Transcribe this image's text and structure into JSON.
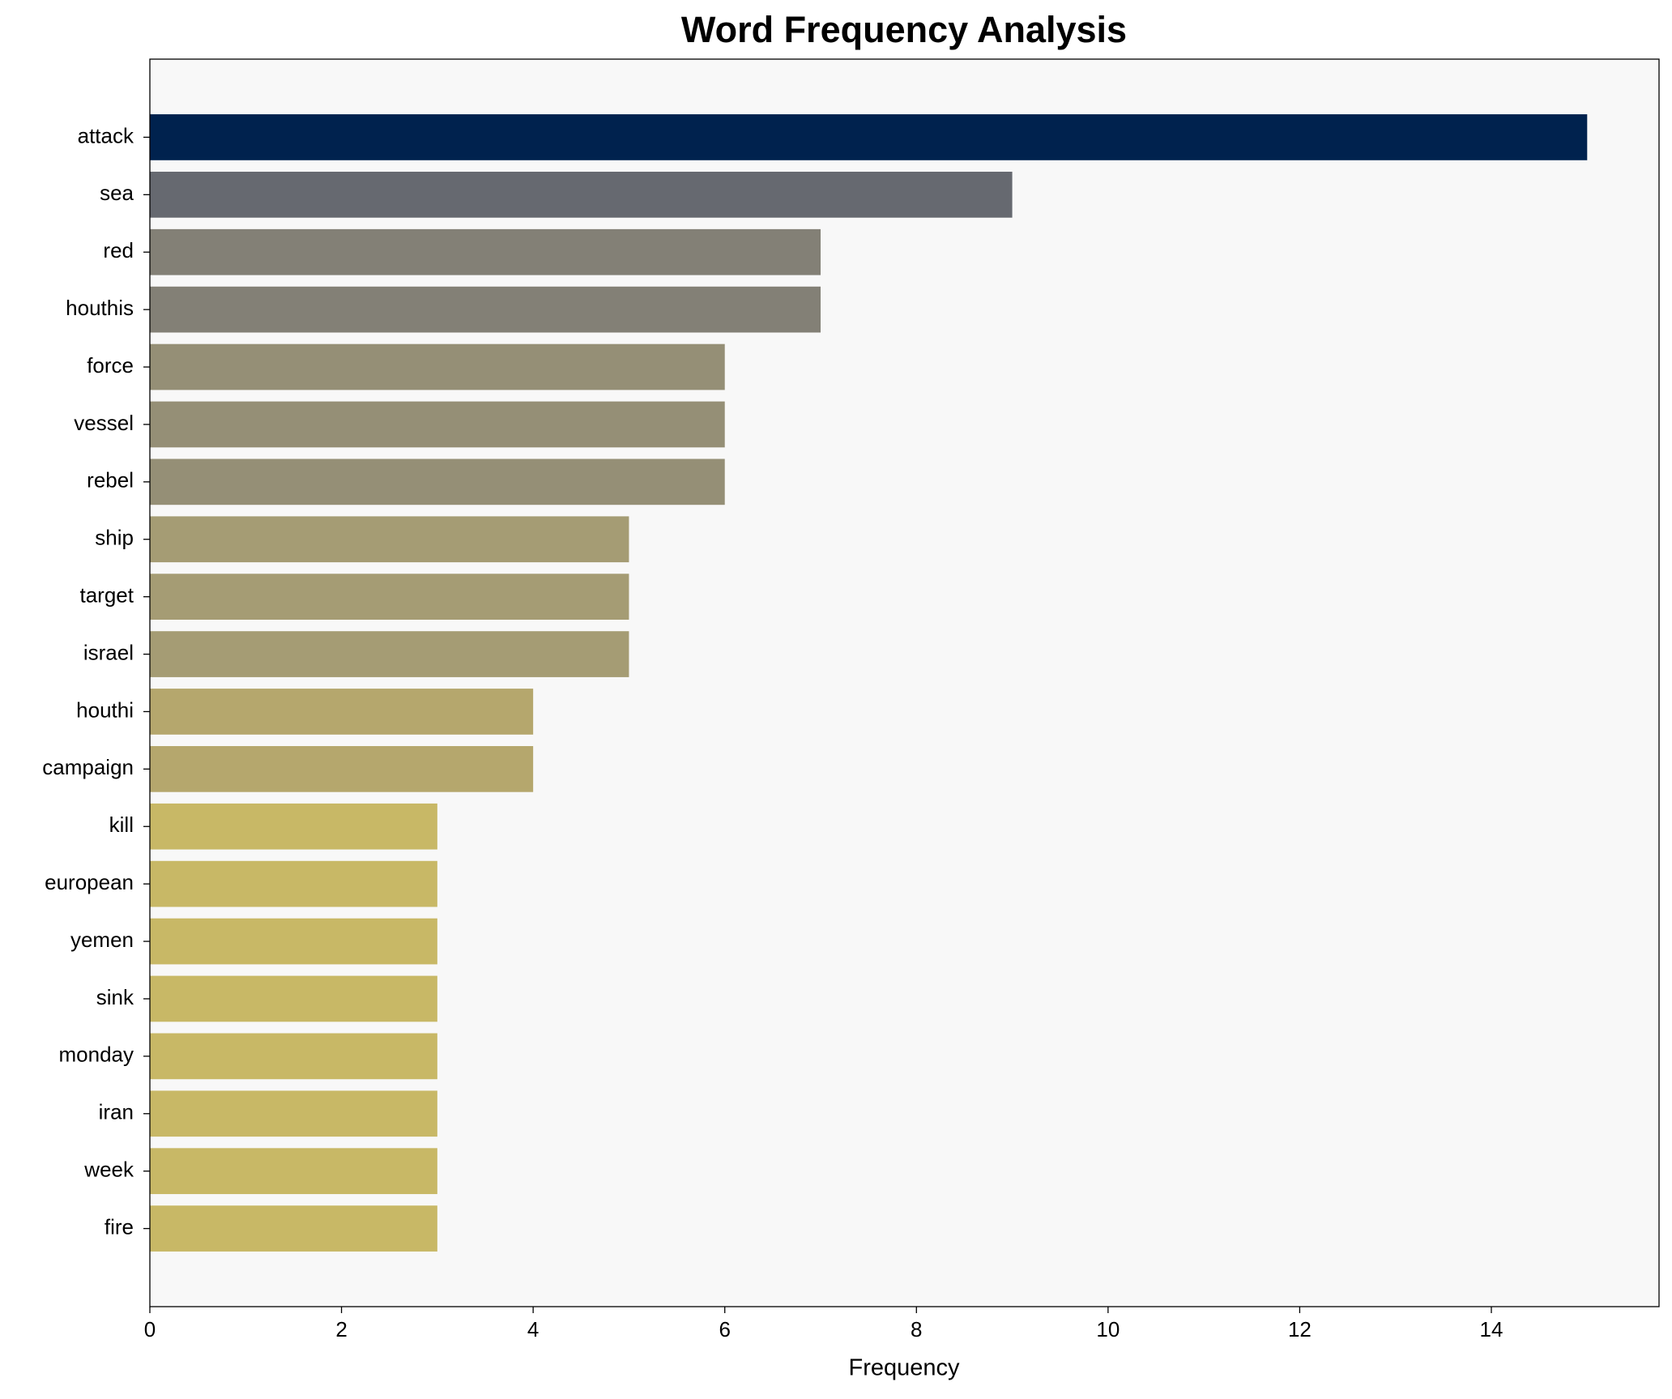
{
  "chart_data": {
    "type": "barh",
    "title": "Word Frequency Analysis",
    "x_label": "Frequency",
    "categories": [
      "attack",
      "sea",
      "red",
      "houthis",
      "force",
      "vessel",
      "rebel",
      "ship",
      "target",
      "israel",
      "houthi",
      "campaign",
      "kill",
      "european",
      "yemen",
      "sink",
      "monday",
      "iran",
      "week",
      "fire"
    ],
    "values": [
      15,
      9,
      7,
      7,
      6,
      6,
      6,
      5,
      5,
      5,
      4,
      4,
      3,
      3,
      3,
      3,
      3,
      3,
      3,
      3
    ],
    "colors": [
      "#00224e",
      "#666970",
      "#838076",
      "#838076",
      "#958f76",
      "#958f76",
      "#958f76",
      "#a59c74",
      "#a59c74",
      "#a59c74",
      "#b5a76d",
      "#b5a76d",
      "#c8b866",
      "#c8b866",
      "#c8b866",
      "#c8b866",
      "#c8b866",
      "#c8b866",
      "#c8b866",
      "#c8b866"
    ],
    "xlim": [
      0,
      15.75
    ],
    "xticks": [
      0,
      2,
      4,
      6,
      8,
      10,
      12,
      14
    ]
  }
}
